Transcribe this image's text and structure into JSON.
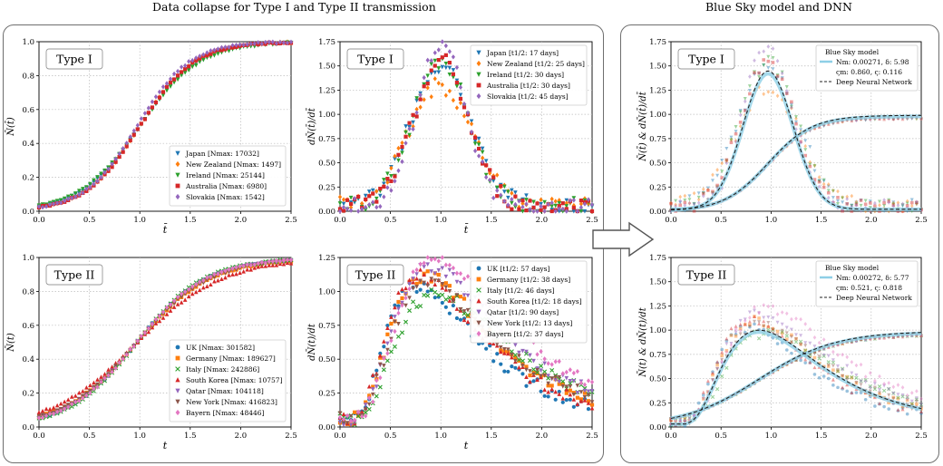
{
  "headers": {
    "left": "Data collapse for Type I and Type II transmission",
    "right": "Blue Sky model and DNN"
  },
  "colors": {
    "blue": "#1f77b4",
    "orange": "#ff7f0e",
    "green": "#2ca02c",
    "red": "#d62728",
    "purple": "#9467bd",
    "brown": "#8c564b",
    "pink": "#e377c2",
    "light_blue": "#8ecfe6",
    "dnn": "#222222"
  },
  "chart_data": [
    {
      "id": "p1",
      "type": "scatter",
      "label": "Type I",
      "xlabel": "t̄",
      "ylabel": "N̄(t̄)",
      "xlim": [
        0,
        2.5
      ],
      "ylim": [
        0,
        1
      ],
      "xticks": [
        "0.0",
        "0.5",
        "1.0",
        "1.5",
        "2.0",
        "2.5"
      ],
      "yticks": [
        "0.0",
        "0.2",
        "0.4",
        "0.6",
        "0.8",
        "1.0"
      ],
      "grid": true,
      "legend_position": "lower-right",
      "series": [
        {
          "name": "Japan [Nmax: 17032]",
          "color": "blue",
          "marker": "tri_down",
          "kind": "cdf",
          "params": {
            "a": 1.0,
            "k": 0.29
          }
        },
        {
          "name": "New Zealand [Nmax: 1497]",
          "color": "orange",
          "marker": "diamond",
          "kind": "cdf",
          "params": {
            "a": 1.0,
            "k": 0.27
          }
        },
        {
          "name": "Ireland [Nmax: 25144]",
          "color": "green",
          "marker": "tri_down",
          "kind": "cdf",
          "params": {
            "a": 1.0,
            "k": 0.3
          }
        },
        {
          "name": "Australia [Nmax: 6980]",
          "color": "red",
          "marker": "square",
          "kind": "cdf",
          "params": {
            "a": 1.0,
            "k": 0.27
          }
        },
        {
          "name": "Slovakia [Nmax: 1542]",
          "color": "purple",
          "marker": "diamond",
          "kind": "cdf",
          "params": {
            "a": 0.97,
            "k": 0.26
          }
        }
      ]
    },
    {
      "id": "p2",
      "type": "scatter",
      "label": "Type I",
      "xlabel": "t̄",
      "ylabel": "dN̄(t̄)/dt̄",
      "xlim": [
        -1,
        1.5
      ],
      "ylim": [
        0,
        1.75
      ],
      "xticks": [
        "0.0",
        "0.5",
        "1.0",
        "1.5",
        "2.0",
        "2.5"
      ],
      "yticks": [
        "0.00",
        "0.25",
        "0.50",
        "0.75",
        "1.00",
        "1.25",
        "1.50",
        "1.75"
      ],
      "grid": true,
      "legend_position": "top-right",
      "series": [
        {
          "name": "Japan [t1/2: 17 days]",
          "color": "blue",
          "marker": "tri_down",
          "kind": "pdf",
          "params": {
            "a": 0.0,
            "s": 0.3,
            "h": 1.45
          }
        },
        {
          "name": "New Zealand [t1/2: 25 days]",
          "color": "orange",
          "marker": "diamond",
          "kind": "pdf",
          "params": {
            "a": 0.0,
            "s": 0.32,
            "h": 1.25
          }
        },
        {
          "name": "Ireland [t1/2: 30 days]",
          "color": "green",
          "marker": "tri_down",
          "kind": "pdf",
          "params": {
            "a": 0.0,
            "s": 0.28,
            "h": 1.5
          }
        },
        {
          "name": "Australia [t1/2: 30 days]",
          "color": "red",
          "marker": "square",
          "kind": "pdf",
          "params": {
            "a": 0.0,
            "s": 0.27,
            "h": 1.5
          }
        },
        {
          "name": "Slovakia [t1/2: 45 days]",
          "color": "purple",
          "marker": "diamond",
          "kind": "pdf",
          "params": {
            "a": 0.0,
            "s": 0.24,
            "h": 1.7
          }
        }
      ]
    },
    {
      "id": "p3",
      "type": "scatter",
      "label": "Type II",
      "xlabel": "t",
      "ylabel": "N̄(t)",
      "xlim": [
        0,
        2.5
      ],
      "ylim": [
        0,
        1
      ],
      "xticks": [
        "0.0",
        "0.5",
        "1.0",
        "1.5",
        "2.0",
        "2.5"
      ],
      "yticks": [
        "0.0",
        "0.2",
        "0.4",
        "0.6",
        "0.8",
        "1.0"
      ],
      "grid": true,
      "legend_position": "lower-right",
      "series": [
        {
          "name": "UK [Nmax: 301582]",
          "color": "blue",
          "marker": "circle",
          "kind": "cdf",
          "params": {
            "a": 0.95,
            "k": 0.34
          }
        },
        {
          "name": "Germany [Nmax: 189627]",
          "color": "orange",
          "marker": "square",
          "kind": "cdf",
          "params": {
            "a": 0.95,
            "k": 0.36
          }
        },
        {
          "name": "Italy [Nmax: 242886]",
          "color": "green",
          "marker": "cross",
          "kind": "cdf",
          "params": {
            "a": 0.95,
            "k": 0.33
          }
        },
        {
          "name": "South Korea [Nmax: 10757]",
          "color": "red",
          "marker": "triangle",
          "kind": "cdf",
          "params": {
            "a": 0.95,
            "k": 0.42
          }
        },
        {
          "name": "Qatar [Nmax: 104118]",
          "color": "purple",
          "marker": "tri_down",
          "kind": "cdf",
          "params": {
            "a": 0.95,
            "k": 0.35
          }
        },
        {
          "name": "New York [Nmax: 416823]",
          "color": "brown",
          "marker": "tri_down",
          "kind": "cdf",
          "params": {
            "a": 0.95,
            "k": 0.36
          }
        },
        {
          "name": "Bayern [Nmax: 48446]",
          "color": "pink",
          "marker": "diamond",
          "kind": "cdf",
          "params": {
            "a": 0.95,
            "k": 0.34
          }
        }
      ]
    },
    {
      "id": "p4",
      "type": "scatter",
      "label": "Type II",
      "xlabel": "t",
      "ylabel": "dN̄(t)/dt",
      "xlim": [
        0,
        2.5
      ],
      "ylim": [
        0,
        1.25
      ],
      "xticks": [
        "0.0",
        "0.5",
        "1.0",
        "1.5",
        "2.0",
        "2.5"
      ],
      "yticks": [
        "0.00",
        "0.25",
        "0.50",
        "0.75",
        "1.00",
        "1.25"
      ],
      "grid": true,
      "legend_position": "top-right",
      "series": [
        {
          "name": "UK [t1/2: 57 days]",
          "color": "blue",
          "marker": "circle",
          "kind": "skew",
          "params": {
            "a": 0.78,
            "h": 0.98
          }
        },
        {
          "name": "Germany [t1/2: 38 days]",
          "color": "orange",
          "marker": "square",
          "kind": "skew",
          "params": {
            "a": 0.85,
            "h": 1.05
          }
        },
        {
          "name": "Italy [t1/2: 46 days]",
          "color": "green",
          "marker": "cross",
          "kind": "skew",
          "params": {
            "a": 0.95,
            "h": 0.92
          }
        },
        {
          "name": "South Korea [t1/2: 18 days]",
          "color": "red",
          "marker": "triangle",
          "kind": "skew",
          "params": {
            "a": 0.8,
            "h": 1.05
          }
        },
        {
          "name": "Qatar [t1/2: 90 days]",
          "color": "purple",
          "marker": "tri_down",
          "kind": "skew",
          "params": {
            "a": 0.9,
            "h": 1.12
          }
        },
        {
          "name": "New York [t1/2: 13 days]",
          "color": "brown",
          "marker": "tri_down",
          "kind": "skew",
          "params": {
            "a": 0.88,
            "h": 1.0
          }
        },
        {
          "name": "Bayern [t1/2: 37 days]",
          "color": "pink",
          "marker": "diamond",
          "kind": "skew",
          "params": {
            "a": 0.96,
            "h": 1.18
          }
        }
      ]
    },
    {
      "id": "p5",
      "type": "line",
      "label": "Type I",
      "xlabel": "",
      "ylabel": "N̄(t̄) & dN̄(t̄)/dt̄",
      "xlim": [
        0,
        2.5
      ],
      "ylim": [
        0,
        1.75
      ],
      "xticks": [
        "0.0",
        "0.5",
        "1.0",
        "1.5",
        "2.0",
        "2.5"
      ],
      "yticks": [
        "0.00",
        "0.25",
        "0.50",
        "0.75",
        "1.00",
        "1.25",
        "1.50",
        "1.75"
      ],
      "grid": true,
      "legend_position": "top-right",
      "legend": [
        {
          "text": "Blue Sky model",
          "style": "title"
        },
        {
          "text": "Nm: 0.00271, δ: 5.98",
          "style": "line-light"
        },
        {
          "text": "ςm: 0.860, ς: 0.116",
          "style": "none"
        },
        {
          "text": "Deep Neural Network",
          "style": "dashed"
        }
      ],
      "curves": {
        "peak_x": 0.97,
        "peak_h": 1.4,
        "width": 0.25,
        "cdf_k": 0.22
      },
      "scatter_source": "p2"
    },
    {
      "id": "p6",
      "type": "line",
      "label": "Type II",
      "xlabel": "",
      "ylabel": "N̄(t) & dN̄(t)/dt",
      "xlim": [
        0,
        2.5
      ],
      "ylim": [
        0,
        1.75
      ],
      "xticks": [
        "0.0",
        "0.5",
        "1.0",
        "1.5",
        "2.0",
        "2.5"
      ],
      "yticks": [
        "0.00",
        "0.25",
        "0.50",
        "0.75",
        "1.00",
        "1.25",
        "1.50",
        "1.75"
      ],
      "grid": true,
      "legend_position": "top-right",
      "legend": [
        {
          "text": "Blue Sky model",
          "style": "title"
        },
        {
          "text": "Nm: 0.00272, δ: 5.77",
          "style": "line-light"
        },
        {
          "text": "ςm: 0.521, ς: 0.818",
          "style": "none"
        },
        {
          "text": "Deep Neural Network",
          "style": "dashed"
        }
      ],
      "curves": {
        "peak_x": 0.88,
        "peak_h": 0.95,
        "width": 0.3,
        "cdf_k": 0.38
      },
      "scatter_source": "p4"
    }
  ]
}
